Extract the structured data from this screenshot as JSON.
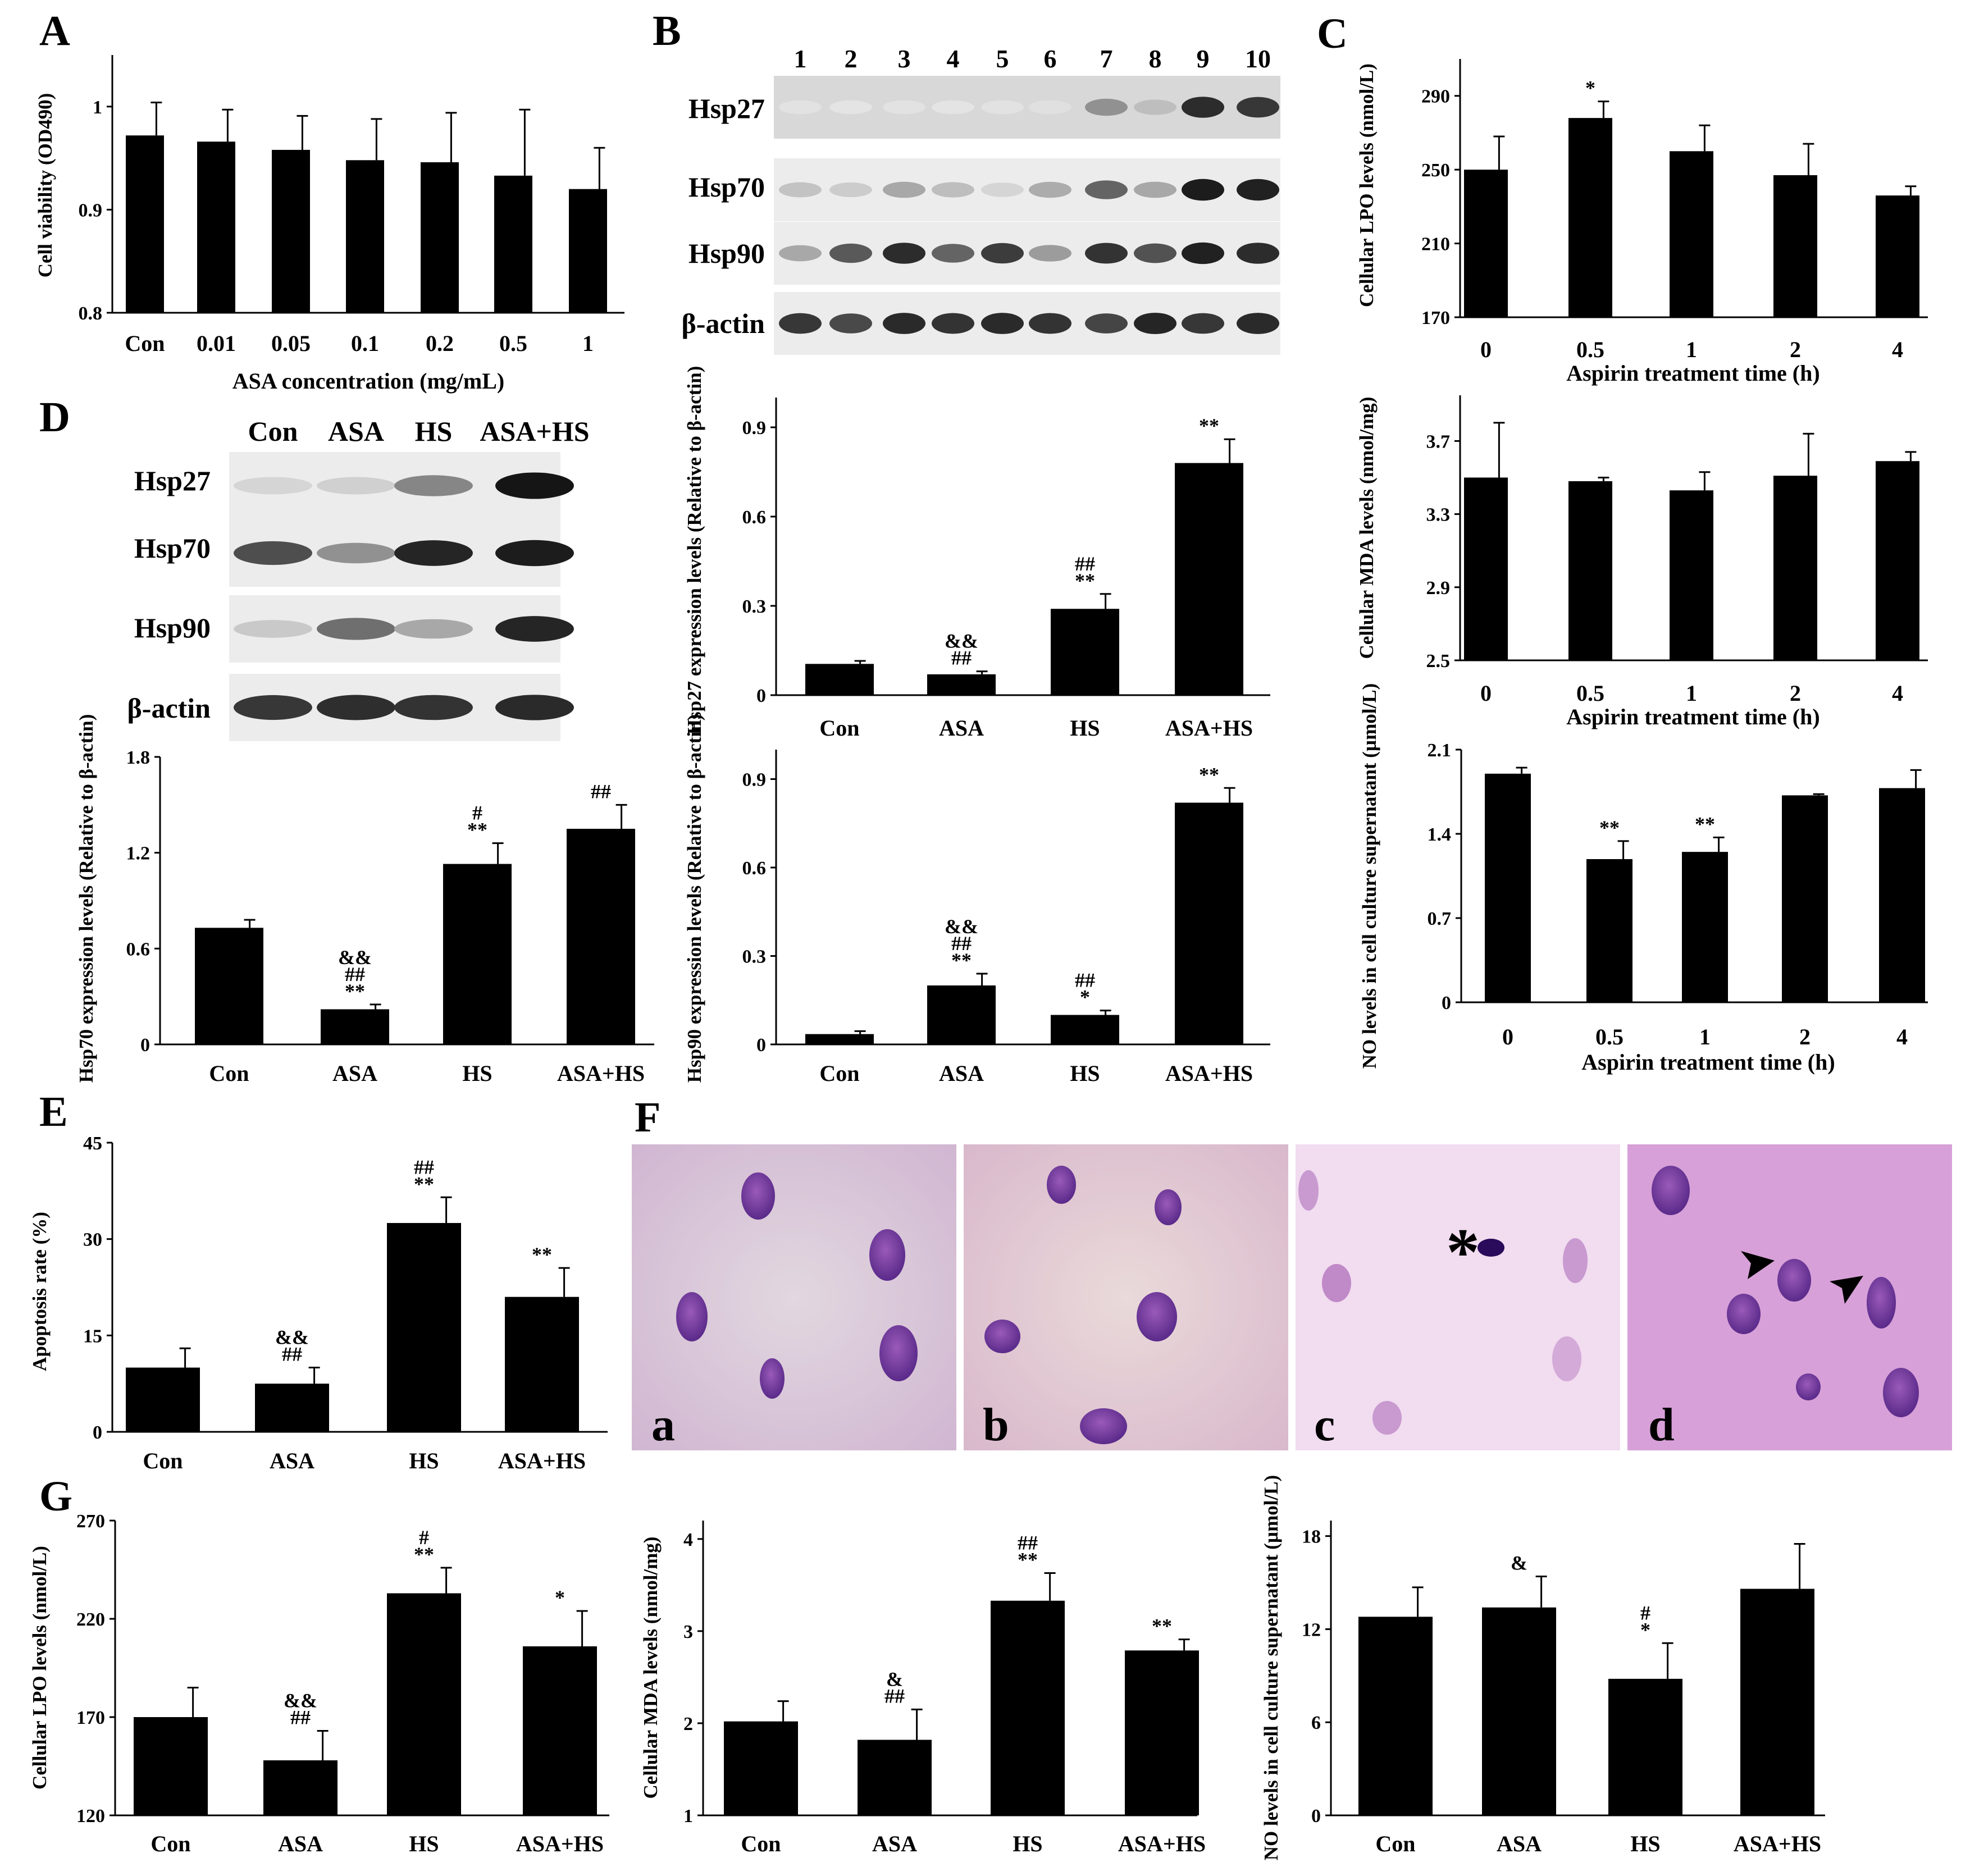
{
  "panel_letters": {
    "A": "A",
    "B": "B",
    "C": "C",
    "D": "D",
    "E": "E",
    "F": "F",
    "G": "G"
  },
  "wb_B": {
    "lanes": [
      "1",
      "2",
      "3",
      "4",
      "5",
      "6",
      "7",
      "8",
      "9",
      "10"
    ],
    "rows": [
      "Hsp27",
      "Hsp70",
      "Hsp90",
      "β-actin"
    ],
    "intensity": [
      [
        0.04,
        0.03,
        0.04,
        0.03,
        0.04,
        0.05,
        0.4,
        0.2,
        0.85,
        0.8
      ],
      [
        0.18,
        0.14,
        0.3,
        0.2,
        0.1,
        0.28,
        0.6,
        0.3,
        0.92,
        0.9
      ],
      [
        0.3,
        0.65,
        0.85,
        0.6,
        0.78,
        0.35,
        0.82,
        0.68,
        0.9,
        0.85
      ],
      [
        0.8,
        0.72,
        0.86,
        0.82,
        0.86,
        0.82,
        0.74,
        0.88,
        0.8,
        0.86
      ]
    ]
  },
  "wb_D": {
    "lanes": [
      "Con",
      "ASA",
      "HS",
      "ASA+HS"
    ],
    "rows": [
      "Hsp27",
      "Hsp70",
      "Hsp90",
      "β-actin"
    ],
    "intensity": [
      [
        0.1,
        0.12,
        0.45,
        0.95
      ],
      [
        0.7,
        0.4,
        0.88,
        0.92
      ],
      [
        0.15,
        0.55,
        0.3,
        0.88
      ],
      [
        0.8,
        0.84,
        0.82,
        0.86
      ]
    ]
  },
  "micrograph_labels": [
    "a",
    "b",
    "c",
    "d"
  ],
  "micrograph_marker": "*",
  "chart_data": [
    {
      "id": "A",
      "type": "bar",
      "title": "",
      "xlabel": "ASA concentration (mg/mL)",
      "ylabel": "Cell viability (OD490)",
      "categories": [
        "Con",
        "0.01",
        "0.05",
        "0.1",
        "0.2",
        "0.5",
        "1"
      ],
      "values": [
        0.972,
        0.966,
        0.958,
        0.948,
        0.946,
        0.933,
        0.92
      ],
      "errors": [
        0.032,
        0.031,
        0.033,
        0.04,
        0.048,
        0.064,
        0.04
      ],
      "annotations": [
        [],
        [],
        [],
        [],
        [],
        [],
        []
      ],
      "ylim": [
        0.8,
        1.05
      ],
      "yticks": [
        0.8,
        0.9,
        1
      ],
      "ytick_labels": [
        "0.8",
        "0.9",
        "1"
      ]
    },
    {
      "id": "C1",
      "type": "bar",
      "title": "",
      "xlabel": "Aspirin treatment time (h)",
      "ylabel": "Cellular LPO levels (nmol/L)",
      "categories": [
        "0",
        "0.5",
        "1",
        "2",
        "4"
      ],
      "values": [
        250,
        278,
        260,
        247,
        236
      ],
      "errors": [
        18,
        9,
        14,
        17,
        5
      ],
      "annotations": [
        [],
        [
          "*"
        ],
        [],
        [],
        []
      ],
      "ylim": [
        170,
        310
      ],
      "yticks": [
        170,
        210,
        250,
        290
      ],
      "ytick_labels": [
        "170",
        "210",
        "250",
        "290"
      ]
    },
    {
      "id": "C2",
      "type": "bar",
      "title": "",
      "xlabel": "Aspirin treatment time (h)",
      "ylabel": "Cellular MDA levels (nmol/mg)",
      "categories": [
        "0",
        "0.5",
        "1",
        "2",
        "4"
      ],
      "values": [
        3.5,
        3.48,
        3.43,
        3.51,
        3.59
      ],
      "errors": [
        0.3,
        0.02,
        0.1,
        0.23,
        0.05
      ],
      "annotations": [
        [],
        [],
        [],
        [],
        []
      ],
      "ylim": [
        2.5,
        3.95
      ],
      "yticks": [
        2.5,
        2.9,
        3.3,
        3.7
      ],
      "ytick_labels": [
        "2.5",
        "2.9",
        "3.3",
        "3.7"
      ]
    },
    {
      "id": "C3",
      "type": "bar",
      "title": "",
      "xlabel": "Aspirin treatment time (h)",
      "ylabel": "NO levels in cell culture supernatant (µmol/L)",
      "categories": [
        "0",
        "0.5",
        "1",
        "2",
        "4"
      ],
      "values": [
        1.9,
        1.19,
        1.25,
        1.72,
        1.78
      ],
      "errors": [
        0.05,
        0.15,
        0.12,
        0.01,
        0.15
      ],
      "annotations": [
        [],
        [
          "**"
        ],
        [
          "**"
        ],
        [],
        []
      ],
      "ylim": [
        0,
        2.1
      ],
      "yticks": [
        0,
        0.7,
        1.4,
        2.1
      ],
      "ytick_labels": [
        "0",
        "0.7",
        "1.4",
        "2.1"
      ]
    },
    {
      "id": "B2",
      "type": "bar",
      "title": "",
      "xlabel": "",
      "ylabel": "Hsp27 expression levels (Relative to β-actin)",
      "categories": [
        "Con",
        "ASA",
        "HS",
        "ASA+HS"
      ],
      "values": [
        0.105,
        0.07,
        0.29,
        0.78
      ],
      "errors": [
        0.01,
        0.01,
        0.05,
        0.08
      ],
      "annotations": [
        [],
        [
          "##",
          "&&"
        ],
        [
          "**",
          "##"
        ],
        [
          "**"
        ]
      ],
      "ylim": [
        0,
        1.0
      ],
      "yticks": [
        0,
        0.3,
        0.6,
        0.9
      ],
      "ytick_labels": [
        "0",
        "0.3",
        "0.6",
        "0.9"
      ]
    },
    {
      "id": "B3",
      "type": "bar",
      "title": "",
      "xlabel": "",
      "ylabel": "Hsp90 expression levels (Relative to β-actin)",
      "categories": [
        "Con",
        "ASA",
        "HS",
        "ASA+HS"
      ],
      "values": [
        0.035,
        0.2,
        0.1,
        0.82
      ],
      "errors": [
        0.01,
        0.04,
        0.015,
        0.05
      ],
      "annotations": [
        [],
        [
          "**",
          "##",
          "&&"
        ],
        [
          "*",
          "##"
        ],
        [
          "**"
        ]
      ],
      "ylim": [
        0,
        1.0
      ],
      "yticks": [
        0,
        0.3,
        0.6,
        0.9
      ],
      "ytick_labels": [
        "0",
        "0.3",
        "0.6",
        "0.9"
      ]
    },
    {
      "id": "D",
      "type": "bar",
      "title": "",
      "xlabel": "",
      "ylabel": "Hsp70 expression levels (Relative to β-actin)",
      "categories": [
        "Con",
        "ASA",
        "HS",
        "ASA+HS"
      ],
      "values": [
        0.73,
        0.22,
        1.13,
        1.35
      ],
      "errors": [
        0.05,
        0.03,
        0.13,
        0.15
      ],
      "annotations": [
        [],
        [
          "**",
          "##",
          "&&"
        ],
        [
          "**",
          "#"
        ],
        [
          "##"
        ]
      ],
      "ylim": [
        0,
        1.8
      ],
      "yticks": [
        0,
        0.6,
        1.2,
        1.8
      ],
      "ytick_labels": [
        "0",
        "0.6",
        "1.2",
        "1.8"
      ]
    },
    {
      "id": "E",
      "type": "bar",
      "title": "",
      "xlabel": "",
      "ylabel": "Apoptosis rate (%)",
      "categories": [
        "Con",
        "ASA",
        "HS",
        "ASA+HS"
      ],
      "values": [
        10,
        7.5,
        32.5,
        21
      ],
      "errors": [
        3,
        2.5,
        4,
        4.5
      ],
      "annotations": [
        [],
        [
          "##",
          "&&"
        ],
        [
          "**",
          "##"
        ],
        [
          "**"
        ]
      ],
      "ylim": [
        0,
        45
      ],
      "yticks": [
        0,
        15,
        30,
        45
      ],
      "ytick_labels": [
        "0",
        "15",
        "30",
        "45"
      ]
    },
    {
      "id": "G1",
      "type": "bar",
      "title": "",
      "xlabel": "",
      "ylabel": "Cellular LPO levels (nmol/L)",
      "categories": [
        "Con",
        "ASA",
        "HS",
        "ASA+HS"
      ],
      "values": [
        170,
        148,
        233,
        206
      ],
      "errors": [
        15,
        15,
        13,
        18
      ],
      "annotations": [
        [],
        [
          "##",
          "&&"
        ],
        [
          "**",
          "#"
        ],
        [
          "*"
        ]
      ],
      "ylim": [
        120,
        270
      ],
      "yticks": [
        120,
        170,
        220,
        270
      ],
      "ytick_labels": [
        "120",
        "170",
        "220",
        "270"
      ]
    },
    {
      "id": "G2",
      "type": "bar",
      "title": "",
      "xlabel": "",
      "ylabel": "Cellular MDA levels (nmol/mg)",
      "categories": [
        "Con",
        "ASA",
        "HS",
        "ASA+HS"
      ],
      "values": [
        2.02,
        1.82,
        3.33,
        2.79
      ],
      "errors": [
        0.22,
        0.33,
        0.3,
        0.12
      ],
      "annotations": [
        [],
        [
          "##",
          "&"
        ],
        [
          "**",
          "##"
        ],
        [
          "**"
        ]
      ],
      "ylim": [
        1,
        4.2
      ],
      "yticks": [
        1,
        2,
        3,
        4
      ],
      "ytick_labels": [
        "1",
        "2",
        "3",
        "4"
      ]
    },
    {
      "id": "G3",
      "type": "bar",
      "title": "",
      "xlabel": "",
      "ylabel": "NO levels in cell culture supernatant (µmol/L)",
      "categories": [
        "Con",
        "ASA",
        "HS",
        "ASA+HS"
      ],
      "values": [
        12.8,
        13.4,
        8.8,
        14.6
      ],
      "errors": [
        1.9,
        2.0,
        2.3,
        2.9
      ],
      "annotations": [
        [],
        [
          "&"
        ],
        [
          "*",
          "#"
        ],
        []
      ],
      "ylim": [
        0,
        19
      ],
      "yticks": [
        0,
        6,
        12,
        18
      ],
      "ytick_labels": [
        "0",
        "6",
        "12",
        "18"
      ]
    }
  ]
}
